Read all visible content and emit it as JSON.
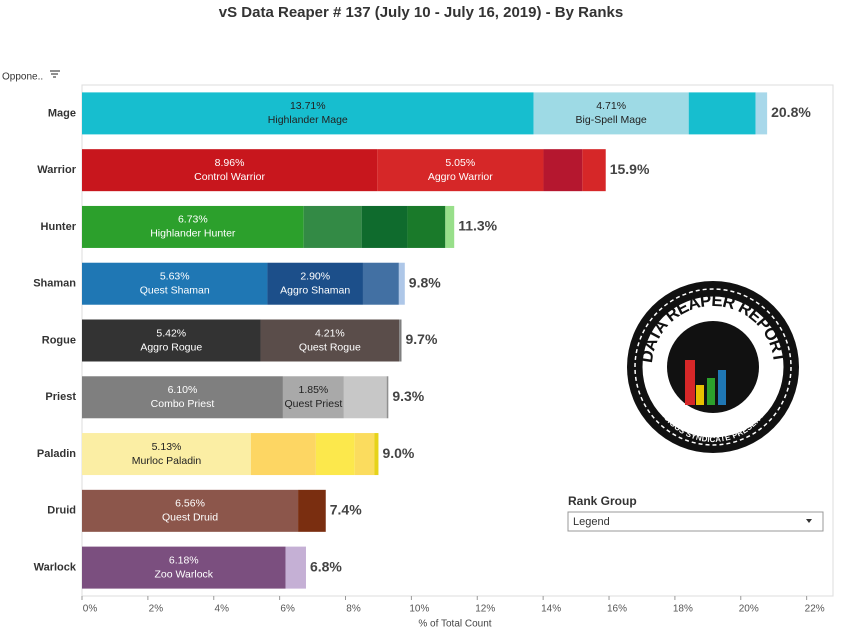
{
  "chart_data": {
    "type": "stacked-bar-horizontal",
    "title": "vS Data Reaper #  137 (July 10 - July 16, 2019) - By Ranks",
    "row_header": "Oppone..",
    "x_label": "% of Total Count",
    "xlim": [
      0,
      22.8
    ],
    "xticks": [
      {
        "value": 0,
        "label": "0%"
      },
      {
        "value": 2,
        "label": "2%"
      },
      {
        "value": 4,
        "label": "4%"
      },
      {
        "value": 6,
        "label": "6%"
      },
      {
        "value": 8,
        "label": "8%"
      },
      {
        "value": 10,
        "label": "10%"
      },
      {
        "value": 12,
        "label": "12%"
      },
      {
        "value": 14,
        "label": "14%"
      },
      {
        "value": 16,
        "label": "16%"
      },
      {
        "value": 18,
        "label": "18%"
      },
      {
        "value": 20,
        "label": "20%"
      },
      {
        "value": 22,
        "label": "22%"
      }
    ],
    "bars": [
      {
        "category": "Mage",
        "total": 20.8,
        "total_label": "20.8%",
        "segments": [
          {
            "name": "Highlander Mage",
            "value": 13.71,
            "value_label": "13.71%",
            "color": "#17becf"
          },
          {
            "name": "Big-Spell Mage",
            "value": 4.71,
            "value_label": "4.71%",
            "color": "#9edae5"
          },
          {
            "value": 2.03,
            "color": "#17becf"
          },
          {
            "value": 0.35,
            "color": "#a8d8ea"
          }
        ]
      },
      {
        "category": "Warrior",
        "total": 15.9,
        "total_label": "15.9%",
        "segments": [
          {
            "name": "Control Warrior",
            "value": 8.96,
            "value_label": "8.96%",
            "color": "#c8161d"
          },
          {
            "name": "Aggro Warrior",
            "value": 5.05,
            "value_label": "5.05%",
            "color": "#d62728"
          },
          {
            "value": 1.18,
            "color": "#b5172f"
          },
          {
            "value": 0.71,
            "color": "#d62728"
          }
        ]
      },
      {
        "category": "Hunter",
        "total": 11.3,
        "total_label": "11.3%",
        "segments": [
          {
            "name": "Highlander Hunter",
            "value": 6.73,
            "value_label": "6.73%",
            "color": "#2ca02c"
          },
          {
            "value": 1.76,
            "color": "#338a45"
          },
          {
            "value": 1.39,
            "color": "#0f6b2d"
          },
          {
            "value": 1.15,
            "color": "#1a7a2a"
          },
          {
            "value": 0.27,
            "color": "#98df8a"
          }
        ]
      },
      {
        "category": "Shaman",
        "total": 9.8,
        "total_label": "9.8%",
        "segments": [
          {
            "name": "Quest Shaman",
            "value": 5.63,
            "value_label": "5.63%",
            "color": "#1f77b4"
          },
          {
            "name": "Aggro Shaman",
            "value": 2.9,
            "value_label": "2.90%",
            "color": "#1c4f8a"
          },
          {
            "value": 1.09,
            "color": "#4270a3"
          },
          {
            "value": 0.18,
            "color": "#aec7e8"
          }
        ]
      },
      {
        "category": "Rogue",
        "total": 9.7,
        "total_label": "9.7%",
        "segments": [
          {
            "name": "Aggro Rogue",
            "value": 5.42,
            "value_label": "5.42%",
            "color": "#333333"
          },
          {
            "name": "Quest Rogue",
            "value": 4.21,
            "value_label": "4.21%",
            "color": "#5a4d4a"
          },
          {
            "value": 0.07,
            "color": "#7f7f7f"
          }
        ]
      },
      {
        "category": "Priest",
        "total": 9.3,
        "total_label": "9.3%",
        "segments": [
          {
            "name": "Combo Priest",
            "value": 6.1,
            "value_label": "6.10%",
            "color": "#7f7f7f"
          },
          {
            "name": "Quest Priest",
            "value": 1.85,
            "value_label": "1.85%",
            "color": "#a9a9a9"
          },
          {
            "value": 1.3,
            "color": "#c7c7c7"
          },
          {
            "value": 0.05,
            "color": "#8f8f8f"
          }
        ]
      },
      {
        "category": "Paladin",
        "total": 9.0,
        "total_label": "9.0%",
        "segments": [
          {
            "name": "Murloc Paladin",
            "value": 5.13,
            "value_label": "5.13%",
            "color": "#fbeea4"
          },
          {
            "value": 1.97,
            "color": "#fdd663"
          },
          {
            "value": 1.18,
            "color": "#fce84c"
          },
          {
            "value": 0.6,
            "color": "#fbdc5e"
          },
          {
            "value": 0.12,
            "color": "#e6d31a"
          }
        ]
      },
      {
        "category": "Druid",
        "total": 7.4,
        "total_label": "7.4%",
        "segments": [
          {
            "name": "Quest Druid",
            "value": 6.56,
            "value_label": "6.56%",
            "color": "#8c564b"
          },
          {
            "value": 0.84,
            "color": "#7a2e10"
          }
        ]
      },
      {
        "category": "Warlock",
        "total": 6.8,
        "total_label": "6.8%",
        "segments": [
          {
            "name": "Zoo Warlock",
            "value": 6.18,
            "value_label": "6.18%",
            "color": "#7b4f7f"
          },
          {
            "value": 0.62,
            "color": "#c5b0d5"
          }
        ]
      }
    ],
    "legend_title": "Rank Group",
    "legend_dropdown": "Legend",
    "logo": {
      "title": "DATA REAPER REPORT",
      "subtitle": "VICIOUS SYNDICATE PRESENTS"
    }
  }
}
